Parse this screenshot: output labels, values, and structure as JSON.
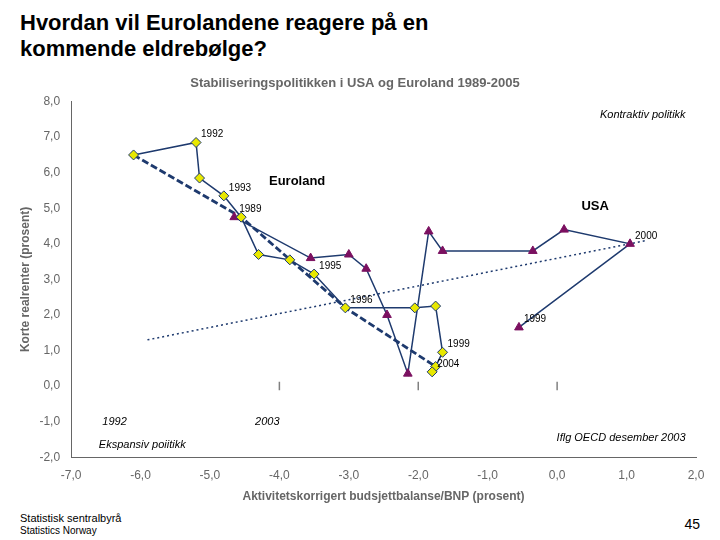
{
  "chart_data": {
    "type": "line",
    "title": "Hvordan vil Eurolandene reagere på en\nkommende eldrebølge?",
    "subtitle": "Stabiliseringspolitikken i USA og Euroland 1989-2005",
    "xlabel": "Aktivitetskorrigert budsjettbalanse/BNP (prosent)",
    "ylabel": "Korte realrenter (prosent)",
    "xlim": [
      -7.0,
      2.0
    ],
    "ylim": [
      -2.0,
      8.0
    ],
    "xticks": [
      {
        "value": -7.0,
        "label": "-7,0"
      },
      {
        "value": -6.0,
        "label": "-6,0"
      },
      {
        "value": -5.0,
        "label": "-5,0"
      },
      {
        "value": -4.0,
        "label": "-4,0"
      },
      {
        "value": -3.0,
        "label": "-3,0"
      },
      {
        "value": -2.0,
        "label": "-2,0"
      },
      {
        "value": -1.0,
        "label": "-1,0"
      },
      {
        "value": 0.0,
        "label": "0,0"
      },
      {
        "value": 1.0,
        "label": "1,0"
      },
      {
        "value": 2.0,
        "label": "2,0"
      }
    ],
    "yticks": [
      {
        "value": -2.0,
        "label": "-2,0"
      },
      {
        "value": -1.0,
        "label": "-1,0"
      },
      {
        "value": 0.0,
        "label": "0,0"
      },
      {
        "value": 1.0,
        "label": "1,0"
      },
      {
        "value": 2.0,
        "label": "2,0"
      },
      {
        "value": 3.0,
        "label": "3,0"
      },
      {
        "value": 4.0,
        "label": "4,0"
      },
      {
        "value": 5.0,
        "label": "5,0"
      },
      {
        "value": 6.0,
        "label": "6,0"
      },
      {
        "value": 7.0,
        "label": "7,0"
      },
      {
        "value": 8.0,
        "label": "8,0"
      }
    ],
    "grid": false,
    "series": [
      {
        "x": [
          -5.9,
          1.3
        ],
        "values": [
          1.3,
          4.1
        ],
        "color": "#1E3A6E",
        "line_style": "dotted",
        "marker": "none"
      },
      {
        "x": [
          -6.1,
          -4.55,
          -3.05,
          -1.75
        ],
        "values": [
          6.5,
          4.75,
          2.2,
          0.55
        ],
        "color": "#1E3A6E",
        "line_style": "dashed",
        "marker": "none"
      },
      {
        "name": "Euroland",
        "x": [
          -6.1,
          -5.2,
          -5.15,
          -4.8,
          -4.55,
          -4.3,
          -3.85,
          -3.5,
          -3.05,
          -2.05,
          -1.75,
          -1.65,
          -1.75,
          -1.8
        ],
        "values": [
          6.5,
          6.85,
          5.85,
          5.35,
          4.75,
          3.7,
          3.55,
          3.15,
          2.2,
          2.2,
          2.25,
          0.95,
          0.55,
          0.4
        ],
        "color": "#1E3A6E",
        "colors": [
          "#E8E800",
          "#E8E800",
          "#E8E800",
          "#E8E800",
          "#E8E800",
          "#E8E800",
          "#E8E800",
          "#E8E800",
          "#E8E800",
          "#E8E800",
          "#E8E800",
          "#E8E800",
          "#E8E800",
          "#E8E800"
        ],
        "marker": "diamond",
        "line_style": "solid",
        "point_labels": [
          null,
          "1992",
          null,
          "1993",
          null,
          null,
          null,
          "1995",
          "1996",
          null,
          null,
          "1999",
          null,
          "2004"
        ]
      },
      {
        "name": "USA",
        "x": [
          -4.65,
          -3.55,
          -3.0,
          -2.75,
          -2.45,
          -2.15,
          -1.85,
          -1.65,
          -0.35,
          0.1,
          1.05,
          -0.55
        ],
        "values": [
          4.75,
          3.6,
          3.7,
          3.3,
          2.0,
          0.35,
          4.35,
          3.8,
          3.8,
          4.4,
          4.0,
          1.65
        ],
        "color": "#1E3A6E",
        "colors": [
          "#7B1060",
          "#7B1060",
          "#7B1060",
          "#7B1060",
          "#7B1060",
          "#7B1060",
          "#7B1060",
          "#7B1060",
          "#7B1060",
          "#7B1060",
          "#7B1060",
          "#7B1060"
        ],
        "marker": "triangle",
        "line_style": "solid",
        "point_labels": [
          "1989",
          null,
          null,
          null,
          null,
          null,
          null,
          null,
          null,
          null,
          "2000",
          "1999"
        ]
      },
      {
        "x": [
          -4.0,
          -4.0
        ],
        "values": [
          -0.12,
          0.12
        ],
        "color": "gray",
        "line_style": "solid",
        "marker": "none"
      },
      {
        "x": [
          -2.0,
          -2.0
        ],
        "values": [
          -0.12,
          0.12
        ],
        "color": "gray",
        "line_style": "solid",
        "marker": "none"
      },
      {
        "x": [
          0.0,
          0.0
        ],
        "values": [
          -0.12,
          0.12
        ],
        "color": "gray",
        "line_style": "solid",
        "marker": "none"
      }
    ],
    "annotations": [
      {
        "text": "Euroland",
        "x": -4.15,
        "y": 5.65
      },
      {
        "text": "USA",
        "x": 0.35,
        "y": 4.95
      },
      {
        "text": "Kontraktiv politikk",
        "x": 1.85,
        "y": 7.55
      },
      {
        "text": "Ekspansiv poiitikk",
        "x": -6.6,
        "y": -1.75
      },
      {
        "text": "Iflg OECD desember 2003",
        "x": 1.85,
        "y": -1.55
      },
      {
        "text": "1992",
        "x": -6.55,
        "y": -1.1
      },
      {
        "text": "2003",
        "x": -4.35,
        "y": -1.1
      }
    ],
    "page_number": "45",
    "footer": [
      "Statistisk sentralbyrå",
      "Statistics Norway"
    ]
  }
}
